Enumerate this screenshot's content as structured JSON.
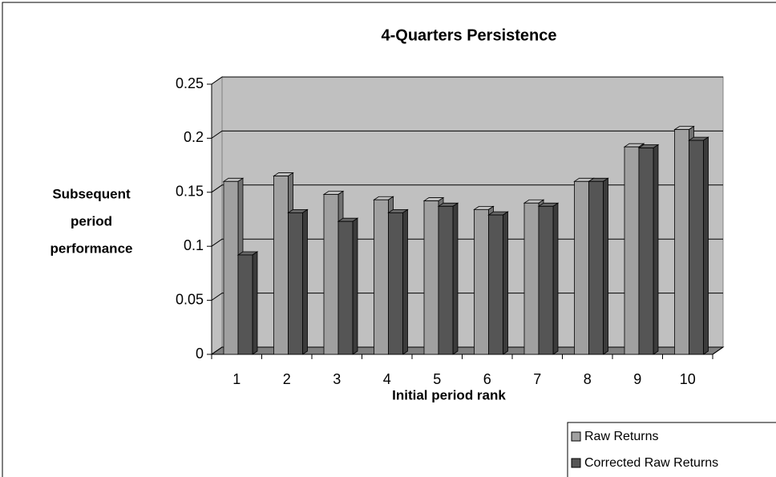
{
  "chart_data": {
    "type": "bar3d",
    "title": "4-Quarters Persistence",
    "x_label": "Initial period rank",
    "y_label": [
      "Subsequent",
      "period",
      "performance"
    ],
    "categories": [
      "1",
      "2",
      "3",
      "4",
      "5",
      "6",
      "7",
      "8",
      "9",
      "10"
    ],
    "series": [
      {
        "name": "Raw Returns",
        "color": "#a0a0a0",
        "values": [
          0.16,
          0.165,
          0.148,
          0.143,
          0.142,
          0.134,
          0.14,
          0.16,
          0.192,
          0.208
        ]
      },
      {
        "name": "Corrected Raw Returns",
        "color": "#555555",
        "values": [
          0.092,
          0.131,
          0.123,
          0.131,
          0.137,
          0.129,
          0.137,
          0.16,
          0.191,
          0.198
        ]
      }
    ],
    "ylim": [
      0,
      0.25
    ],
    "yticks": [
      0,
      0.05,
      0.1,
      0.15,
      0.2,
      0.25
    ],
    "grid": true,
    "legend": "bottom-right",
    "wall_color": "#c0c0c0",
    "floor_color": "#808080"
  }
}
